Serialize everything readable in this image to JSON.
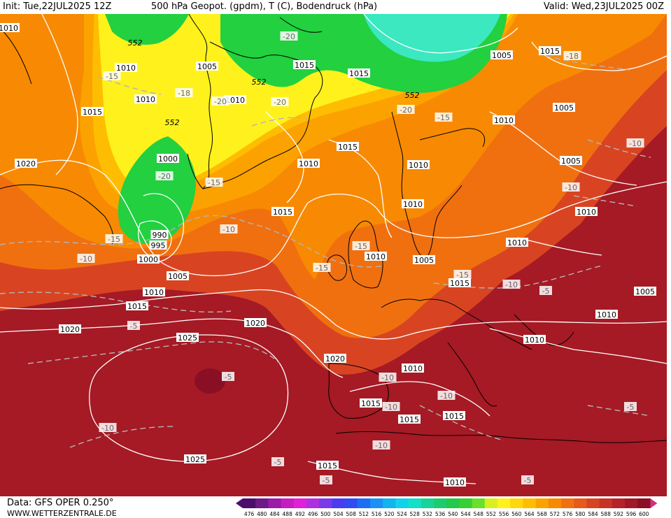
{
  "header": {
    "init": "Init: Tue,22JUL2025 12Z",
    "title": "500 hPa Geopot. (gpdm), T (C), Bodendruck (hPa)",
    "valid": "Valid: Wed,23JUL2025 00Z"
  },
  "footer": {
    "source": "Data: GFS OPER 0.250°",
    "website": "WWW.WETTERZENTRALE.DE"
  },
  "legend": {
    "values": [
      "476",
      "480",
      "484",
      "488",
      "492",
      "496",
      "500",
      "504",
      "508",
      "512",
      "516",
      "520",
      "524",
      "528",
      "532",
      "536",
      "540",
      "544",
      "548",
      "552",
      "556",
      "560",
      "564",
      "568",
      "572",
      "576",
      "580",
      "584",
      "588",
      "592",
      "596",
      "600"
    ],
    "colors": [
      "#4b0f6b",
      "#6d1a86",
      "#9b1aa8",
      "#c61ec0",
      "#e21fd8",
      "#b030e0",
      "#7a3ae8",
      "#4a3cf0",
      "#2f4df2",
      "#1e6ef5",
      "#1b91f5",
      "#12b4f0",
      "#10d2e8",
      "#12e0c8",
      "#18d49a",
      "#1ccc6e",
      "#24c84a",
      "#36d034",
      "#6ae02a",
      "#d8f020",
      "#fff21c",
      "#ffd80c",
      "#ffbd02",
      "#fca200",
      "#f78a02",
      "#f07010",
      "#e65a1a",
      "#d84422",
      "#c83226",
      "#b5222a",
      "#a01828",
      "#8a0f24"
    ]
  },
  "labels": {
    "pressure": [
      "1010",
      "1005",
      "1010",
      "1010",
      "1015",
      "1010",
      "1015",
      "1005",
      "1015",
      "1010",
      "1015",
      "1005",
      "1010",
      "1010",
      "1015",
      "1005",
      "1000",
      "1020",
      "990",
      "995",
      "1000",
      "1005",
      "1010",
      "1010",
      "1015",
      "1010",
      "1005",
      "1010",
      "1015",
      "1010",
      "1005",
      "1010",
      "1015",
      "1020",
      "1020",
      "1025",
      "1020",
      "1010",
      "1005",
      "1010",
      "1015",
      "1015",
      "1015",
      "1015",
      "1015",
      "1025",
      "1010"
    ],
    "heights": [
      "552",
      "552",
      "552",
      "552"
    ],
    "temps": [
      "-18",
      "-20",
      "-20",
      "-15",
      "-20",
      "-20",
      "-18",
      "-15",
      "-15",
      "-20",
      "-10",
      "-10",
      "-15",
      "-15",
      "-15",
      "-10",
      "-10",
      "-5",
      "-15",
      "-5",
      "-5",
      "-10",
      "-10",
      "-10",
      "-10",
      "-10",
      "-5",
      "-5",
      "-5",
      "-10",
      "-5",
      "-5"
    ]
  },
  "colors": {
    "ridge_red": "#a51a24",
    "orange": "#ef7d06",
    "yellow": "#fff21c",
    "trough_green": "#22d040",
    "cyan": "#3be8c0",
    "isobar": "#ffffff",
    "isotherm": "#b4b4b4",
    "coast": "#000000"
  }
}
